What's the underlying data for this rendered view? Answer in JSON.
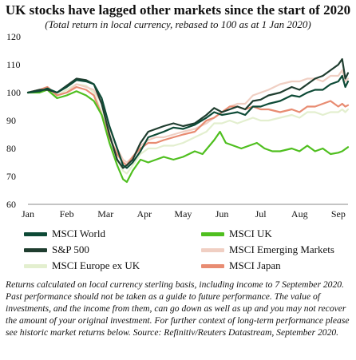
{
  "title": "UK stocks have lagged other markets since the start of 2020",
  "subtitle": "(Total return in local currency, rebased to 100 as at 1 Jan 2020)",
  "note": "Returns calculated on local currency sterling basis, including income to 7 September 2020. Past performance should not be taken as a guide to future performance. The value of investments, and the income from them, can go down as well as up and you may not recover the amount of your original investment. For further context of long-term performance please see historic market returns below. Source: Refinitiv/Reuters Datastream, September 2020.",
  "chart_data": {
    "type": "line",
    "title": "UK stocks have lagged other markets since the start of 2020",
    "subtitle": "(Total return in local currency, rebased to 100 as at 1 Jan 2020)",
    "xlabel": "",
    "ylabel": "",
    "ylim": [
      60,
      120
    ],
    "yticks": [
      60,
      70,
      80,
      90,
      100,
      110,
      120
    ],
    "xlim": [
      0,
      8.25
    ],
    "x_tick_labels": [
      "Jan",
      "Feb",
      "Mar",
      "Apr",
      "May",
      "Jun",
      "Jul",
      "Aug",
      "Sep"
    ],
    "grid": false,
    "legend_position": "bottom",
    "series": [
      {
        "name": "MSCI World",
        "color": "#0d4a36",
        "points": [
          [
            0,
            100
          ],
          [
            0.3,
            100.5
          ],
          [
            0.5,
            101.5
          ],
          [
            0.75,
            100
          ],
          [
            1,
            102
          ],
          [
            1.25,
            104.5
          ],
          [
            1.5,
            104
          ],
          [
            1.7,
            103
          ],
          [
            1.9,
            98
          ],
          [
            2.1,
            88
          ],
          [
            2.3,
            80
          ],
          [
            2.45,
            74
          ],
          [
            2.55,
            73
          ],
          [
            2.7,
            75
          ],
          [
            2.9,
            79
          ],
          [
            3.1,
            84
          ],
          [
            3.3,
            85
          ],
          [
            3.5,
            86
          ],
          [
            3.75,
            87.5
          ],
          [
            4,
            87
          ],
          [
            4.3,
            88.5
          ],
          [
            4.6,
            91
          ],
          [
            4.8,
            93
          ],
          [
            5,
            92
          ],
          [
            5.2,
            92.5
          ],
          [
            5.4,
            93
          ],
          [
            5.6,
            92
          ],
          [
            5.8,
            95
          ],
          [
            6,
            95
          ],
          [
            6.2,
            96
          ],
          [
            6.5,
            97
          ],
          [
            6.8,
            99
          ],
          [
            7,
            98.5
          ],
          [
            7.2,
            100
          ],
          [
            7.4,
            101
          ],
          [
            7.6,
            101
          ],
          [
            7.8,
            103
          ],
          [
            8,
            104
          ],
          [
            8.1,
            106
          ],
          [
            8.18,
            102
          ],
          [
            8.25,
            104
          ]
        ]
      },
      {
        "name": "MSCI UK",
        "color": "#4fbf1f",
        "points": [
          [
            0,
            100
          ],
          [
            0.3,
            100
          ],
          [
            0.5,
            101
          ],
          [
            0.75,
            98
          ],
          [
            1,
            99
          ],
          [
            1.25,
            100.5
          ],
          [
            1.5,
            99
          ],
          [
            1.7,
            97
          ],
          [
            1.9,
            92
          ],
          [
            2.1,
            82
          ],
          [
            2.3,
            74
          ],
          [
            2.45,
            69
          ],
          [
            2.55,
            68
          ],
          [
            2.7,
            72
          ],
          [
            2.9,
            76
          ],
          [
            3.1,
            75
          ],
          [
            3.3,
            76
          ],
          [
            3.5,
            77
          ],
          [
            3.75,
            76
          ],
          [
            4,
            77
          ],
          [
            4.3,
            79
          ],
          [
            4.5,
            78
          ],
          [
            4.8,
            83
          ],
          [
            4.95,
            86
          ],
          [
            5.1,
            82
          ],
          [
            5.3,
            81
          ],
          [
            5.5,
            80
          ],
          [
            5.7,
            81
          ],
          [
            5.9,
            82
          ],
          [
            6.1,
            80
          ],
          [
            6.3,
            79
          ],
          [
            6.5,
            79
          ],
          [
            6.8,
            80
          ],
          [
            7,
            79
          ],
          [
            7.2,
            81
          ],
          [
            7.4,
            79
          ],
          [
            7.6,
            80
          ],
          [
            7.8,
            78
          ],
          [
            8,
            78.5
          ],
          [
            8.1,
            79
          ],
          [
            8.25,
            80.5
          ]
        ]
      },
      {
        "name": "S&P 500",
        "color": "#1f3d2f",
        "points": [
          [
            0,
            100
          ],
          [
            0.3,
            101
          ],
          [
            0.5,
            101
          ],
          [
            0.75,
            100
          ],
          [
            1,
            102.5
          ],
          [
            1.25,
            105
          ],
          [
            1.5,
            104.5
          ],
          [
            1.7,
            103
          ],
          [
            1.9,
            96
          ],
          [
            2.1,
            85
          ],
          [
            2.3,
            76
          ],
          [
            2.45,
            73
          ],
          [
            2.55,
            74
          ],
          [
            2.7,
            76
          ],
          [
            2.9,
            82
          ],
          [
            3.1,
            86
          ],
          [
            3.3,
            87
          ],
          [
            3.5,
            88
          ],
          [
            3.75,
            89
          ],
          [
            4,
            88
          ],
          [
            4.3,
            89
          ],
          [
            4.6,
            92
          ],
          [
            4.8,
            94.5
          ],
          [
            5,
            93
          ],
          [
            5.2,
            94
          ],
          [
            5.4,
            95
          ],
          [
            5.6,
            94
          ],
          [
            5.8,
            97
          ],
          [
            6,
            97.5
          ],
          [
            6.2,
            99
          ],
          [
            6.5,
            100
          ],
          [
            6.8,
            102
          ],
          [
            7,
            101
          ],
          [
            7.2,
            103
          ],
          [
            7.4,
            105
          ],
          [
            7.6,
            106
          ],
          [
            7.8,
            108
          ],
          [
            8,
            110
          ],
          [
            8.1,
            112
          ],
          [
            8.18,
            105
          ],
          [
            8.25,
            107
          ]
        ]
      },
      {
        "name": "MSCI Emerging Markets",
        "color": "#f0cfc3",
        "points": [
          [
            0,
            100
          ],
          [
            0.3,
            101
          ],
          [
            0.5,
            102
          ],
          [
            0.75,
            99
          ],
          [
            1,
            100
          ],
          [
            1.25,
            103
          ],
          [
            1.5,
            102
          ],
          [
            1.7,
            101
          ],
          [
            1.9,
            96
          ],
          [
            2.1,
            87
          ],
          [
            2.3,
            80
          ],
          [
            2.45,
            76
          ],
          [
            2.55,
            75
          ],
          [
            2.7,
            77
          ],
          [
            2.9,
            81
          ],
          [
            3.1,
            83
          ],
          [
            3.3,
            84
          ],
          [
            3.5,
            84
          ],
          [
            3.75,
            85
          ],
          [
            4,
            86
          ],
          [
            4.3,
            87
          ],
          [
            4.6,
            89
          ],
          [
            4.8,
            91
          ],
          [
            5,
            93
          ],
          [
            5.2,
            95
          ],
          [
            5.4,
            96
          ],
          [
            5.6,
            96
          ],
          [
            5.8,
            99
          ],
          [
            6,
            100
          ],
          [
            6.2,
            101
          ],
          [
            6.5,
            103
          ],
          [
            6.8,
            104
          ],
          [
            7,
            104
          ],
          [
            7.2,
            105
          ],
          [
            7.4,
            105
          ],
          [
            7.6,
            104
          ],
          [
            7.8,
            106
          ],
          [
            8,
            106
          ],
          [
            8.1,
            108
          ],
          [
            8.18,
            104
          ],
          [
            8.25,
            105
          ]
        ]
      },
      {
        "name": "MSCI Europe ex UK",
        "color": "#e3efcf",
        "points": [
          [
            0,
            100
          ],
          [
            0.3,
            100.5
          ],
          [
            0.5,
            101
          ],
          [
            0.75,
            99
          ],
          [
            1,
            101
          ],
          [
            1.25,
            103
          ],
          [
            1.5,
            102.5
          ],
          [
            1.7,
            100
          ],
          [
            1.9,
            93
          ],
          [
            2.1,
            84
          ],
          [
            2.3,
            76
          ],
          [
            2.45,
            72
          ],
          [
            2.55,
            71
          ],
          [
            2.7,
            74
          ],
          [
            2.9,
            78
          ],
          [
            3.1,
            80
          ],
          [
            3.3,
            80
          ],
          [
            3.5,
            81
          ],
          [
            3.75,
            81
          ],
          [
            4,
            82
          ],
          [
            4.3,
            84
          ],
          [
            4.6,
            86
          ],
          [
            4.8,
            89
          ],
          [
            5,
            89
          ],
          [
            5.2,
            90
          ],
          [
            5.4,
            89
          ],
          [
            5.6,
            90
          ],
          [
            5.8,
            91
          ],
          [
            6,
            90
          ],
          [
            6.2,
            90
          ],
          [
            6.5,
            91
          ],
          [
            6.8,
            92
          ],
          [
            7,
            91
          ],
          [
            7.2,
            93
          ],
          [
            7.4,
            93
          ],
          [
            7.6,
            92
          ],
          [
            7.8,
            93
          ],
          [
            8,
            93
          ],
          [
            8.1,
            94
          ],
          [
            8.18,
            93
          ],
          [
            8.25,
            94
          ]
        ]
      },
      {
        "name": "MSCI Japan",
        "color": "#e88c72",
        "points": [
          [
            0,
            100
          ],
          [
            0.3,
            101
          ],
          [
            0.5,
            102
          ],
          [
            0.75,
            99
          ],
          [
            1,
            100
          ],
          [
            1.25,
            102
          ],
          [
            1.5,
            101
          ],
          [
            1.7,
            99
          ],
          [
            1.9,
            92
          ],
          [
            2.1,
            84
          ],
          [
            2.3,
            78
          ],
          [
            2.45,
            75
          ],
          [
            2.55,
            74
          ],
          [
            2.7,
            77
          ],
          [
            2.9,
            80
          ],
          [
            3.1,
            82
          ],
          [
            3.3,
            82
          ],
          [
            3.5,
            83
          ],
          [
            3.75,
            84
          ],
          [
            4,
            85
          ],
          [
            4.3,
            86
          ],
          [
            4.6,
            90
          ],
          [
            4.8,
            91
          ],
          [
            5,
            93
          ],
          [
            5.2,
            95
          ],
          [
            5.4,
            95
          ],
          [
            5.6,
            94
          ],
          [
            5.8,
            95
          ],
          [
            6,
            94
          ],
          [
            6.2,
            94
          ],
          [
            6.5,
            93
          ],
          [
            6.8,
            94
          ],
          [
            7,
            93
          ],
          [
            7.2,
            95
          ],
          [
            7.4,
            95
          ],
          [
            7.6,
            96
          ],
          [
            7.8,
            97
          ],
          [
            8,
            95
          ],
          [
            8.1,
            96
          ],
          [
            8.18,
            95
          ],
          [
            8.25,
            95.5
          ]
        ]
      }
    ]
  }
}
